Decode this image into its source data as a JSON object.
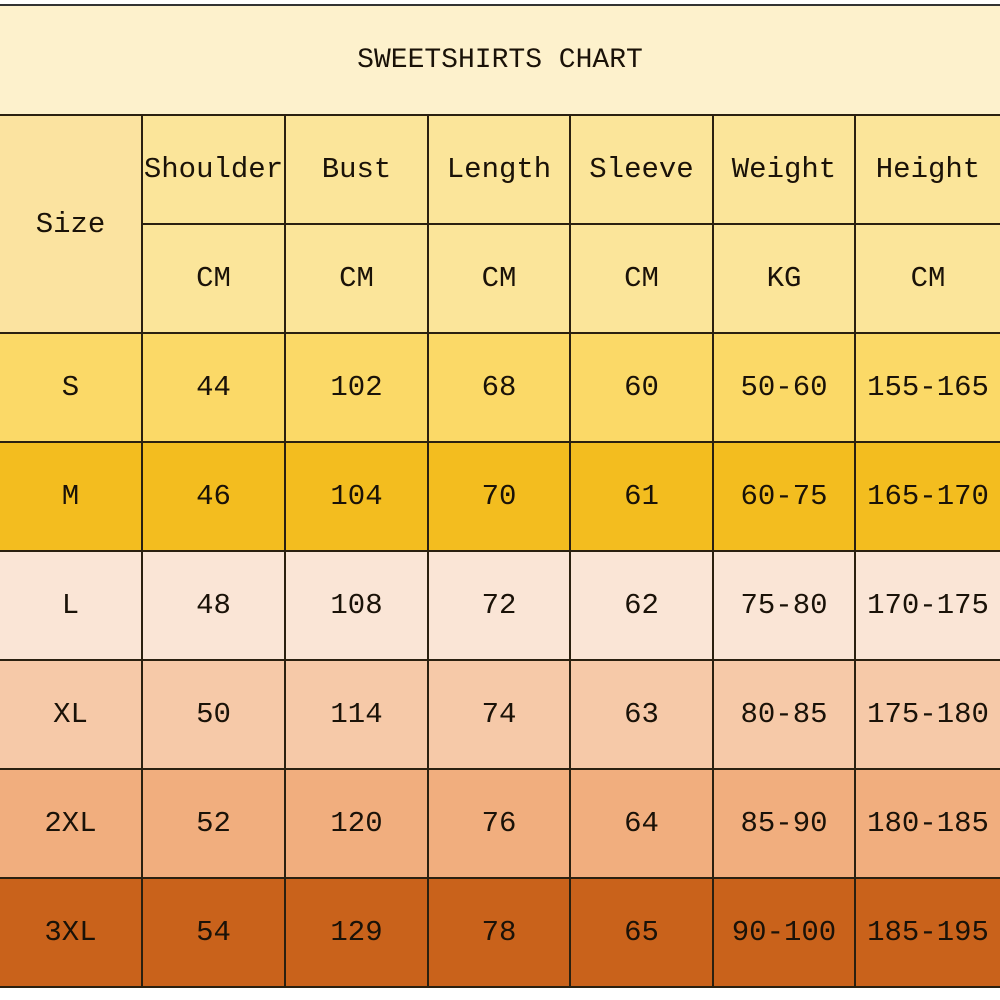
{
  "title": "SWEETSHIRTS CHART",
  "size_header": "Size",
  "columns": [
    {
      "label": "Shoulder",
      "unit": "CM"
    },
    {
      "label": "Bust",
      "unit": "CM"
    },
    {
      "label": "Length",
      "unit": "CM"
    },
    {
      "label": "Sleeve",
      "unit": "CM"
    },
    {
      "label": "Weight",
      "unit": "KG"
    },
    {
      "label": "Height",
      "unit": "CM"
    }
  ],
  "rows": [
    {
      "size": "S",
      "values": [
        "44",
        "102",
        "68",
        "60",
        "50-60",
        "155-165"
      ],
      "color": "#fbd967"
    },
    {
      "size": "M",
      "values": [
        "46",
        "104",
        "70",
        "61",
        "60-75",
        "165-170"
      ],
      "color": "#f3bd1f"
    },
    {
      "size": "L",
      "values": [
        "48",
        "108",
        "72",
        "62",
        "75-80",
        "170-175"
      ],
      "color": "#fae5d6"
    },
    {
      "size": "XL",
      "values": [
        "50",
        "114",
        "74",
        "63",
        "80-85",
        "175-180"
      ],
      "color": "#f6c9a8"
    },
    {
      "size": "2XL",
      "values": [
        "52",
        "120",
        "76",
        "64",
        "85-90",
        "180-185"
      ],
      "color": "#f1ae7e"
    },
    {
      "size": "3XL",
      "values": [
        "54",
        "129",
        "78",
        "65",
        "90-100",
        "185-195"
      ],
      "color": "#c9621b"
    }
  ]
}
